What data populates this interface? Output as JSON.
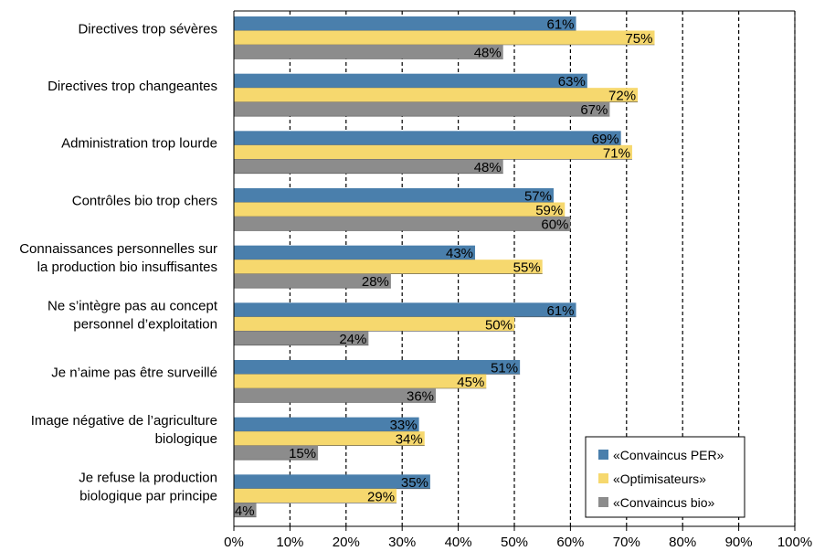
{
  "chart_data": {
    "type": "bar",
    "orientation": "horizontal",
    "categories": [
      [
        "Directives trop sévères"
      ],
      [
        "Directives trop changeantes"
      ],
      [
        "Administration trop lourde"
      ],
      [
        "Contrôles bio trop chers"
      ],
      [
        "Connaissances personnelles sur",
        "la production bio insuffisantes"
      ],
      [
        "Ne s’intègre pas au concept",
        "personnel d’exploitation"
      ],
      [
        "Je n’aime pas être surveillé"
      ],
      [
        "Image négative de l’agriculture",
        "biologique"
      ],
      [
        "Je refuse la production",
        "biologique par principe"
      ]
    ],
    "series": [
      {
        "name": "«Convaincus PER»",
        "color": "#4a7fac",
        "values": [
          61,
          63,
          69,
          57,
          43,
          61,
          51,
          33,
          35
        ],
        "labels": [
          "61%",
          "63%",
          "69%",
          "57%",
          "43%",
          "61%",
          "51%",
          "33%",
          "35%"
        ]
      },
      {
        "name": "«Optimisateurs»",
        "color": "#f6d86e",
        "values": [
          75,
          72,
          71,
          59,
          55,
          50,
          45,
          34,
          29
        ],
        "labels": [
          "75%",
          "72%",
          "71%",
          "59%",
          "55%",
          "50%",
          "45%",
          "34%",
          "29%"
        ]
      },
      {
        "name": "«Convaincus bio»",
        "color": "#8c8c8c",
        "values": [
          48,
          67,
          48,
          60,
          28,
          24,
          36,
          15,
          4
        ],
        "labels": [
          "48%",
          "67%",
          "48%",
          "60%",
          "28%",
          "24%",
          "36%",
          "15%",
          "4%"
        ]
      }
    ],
    "x_ticks": [
      "0%",
      "10%",
      "20%",
      "30%",
      "40%",
      "50%",
      "60%",
      "70%",
      "80%",
      "90%",
      "100%"
    ],
    "xlim": [
      0,
      100
    ],
    "grid": "vertical dashed",
    "legend_position": "bottom-right"
  }
}
